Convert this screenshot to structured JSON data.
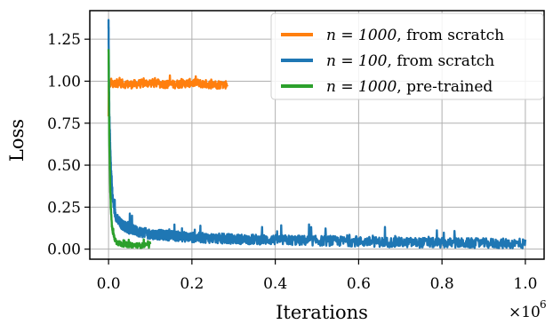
{
  "chart_data": {
    "type": "line",
    "xlabel": "Iterations",
    "ylabel": "Loss",
    "x_multiplier": "×10",
    "x_multiplier_exp": "6",
    "xlim": [
      -0.045,
      1.045
    ],
    "ylim": [
      -0.06,
      1.42
    ],
    "xticks": [
      0.0,
      0.2,
      0.4,
      0.6,
      0.8,
      1.0
    ],
    "xtick_labels": [
      "0.0",
      "0.2",
      "0.4",
      "0.6",
      "0.8",
      "1.0"
    ],
    "yticks": [
      0.0,
      0.25,
      0.5,
      0.75,
      1.0,
      1.25
    ],
    "ytick_labels": [
      "0.00",
      "0.25",
      "0.50",
      "0.75",
      "1.00",
      "1.25"
    ],
    "grid": true,
    "legend_position": "top-right",
    "series": [
      {
        "name": "n = 1000, from scratch",
        "legend_math": "n = 1000",
        "legend_rest": ", from scratch",
        "color": "#ff7f0e",
        "x": [
          0.0,
          0.001,
          0.003,
          0.006,
          0.01,
          0.02,
          0.05,
          0.1,
          0.15,
          0.2,
          0.25,
          0.285
        ],
        "y": [
          0.8,
          1.0,
          0.97,
          1.0,
          0.98,
          0.99,
          0.98,
          0.99,
          0.98,
          0.99,
          0.98,
          0.98
        ],
        "noise": 0.025
      },
      {
        "name": "n = 100, from scratch",
        "legend_math": "n = 100",
        "legend_rest": ", from scratch",
        "color": "#1f77b4",
        "x": [
          0.0,
          0.001,
          0.002,
          0.004,
          0.006,
          0.01,
          0.015,
          0.02,
          0.03,
          0.05,
          0.08,
          0.1,
          0.15,
          0.2,
          0.3,
          0.4,
          0.5,
          0.6,
          0.7,
          0.8,
          0.9,
          1.0
        ],
        "y": [
          1.35,
          1.0,
          0.8,
          0.6,
          0.45,
          0.3,
          0.22,
          0.18,
          0.15,
          0.12,
          0.1,
          0.09,
          0.08,
          0.07,
          0.06,
          0.055,
          0.05,
          0.045,
          0.04,
          0.037,
          0.035,
          0.032
        ],
        "noise": 0.03
      },
      {
        "name": "n = 1000, pre-trained",
        "legend_math": "n = 1000",
        "legend_rest": ", pre-trained",
        "color": "#2ca02c",
        "x": [
          0.0,
          0.001,
          0.002,
          0.004,
          0.006,
          0.008,
          0.01,
          0.015,
          0.02,
          0.03,
          0.05,
          0.075,
          0.1
        ],
        "y": [
          1.2,
          0.85,
          0.6,
          0.35,
          0.22,
          0.14,
          0.1,
          0.06,
          0.04,
          0.03,
          0.025,
          0.022,
          0.02
        ],
        "noise": 0.015
      }
    ]
  }
}
